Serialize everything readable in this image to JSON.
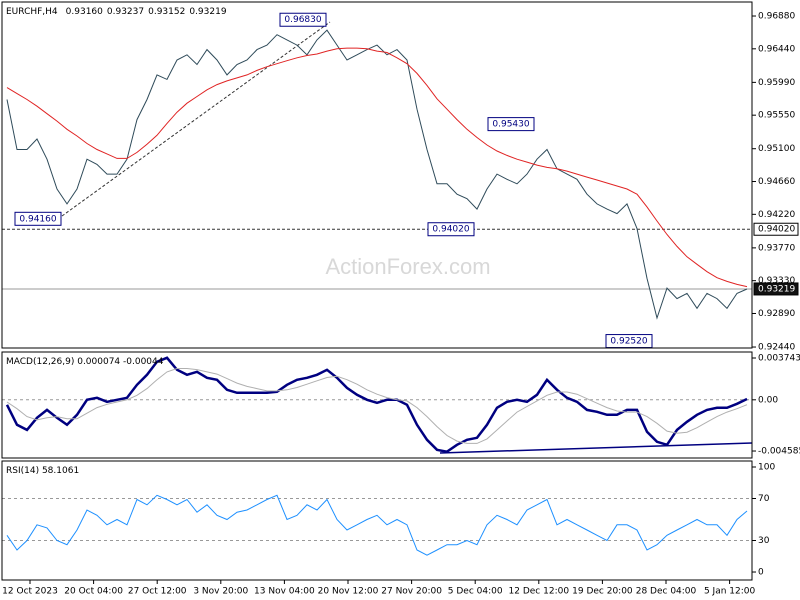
{
  "chart_data": [
    {
      "type": "line",
      "title": "EURCHF,H4",
      "ohlc": [
        {
          "value": 0.9316,
          "label": "0.93160"
        },
        0.93237,
        0.93152,
        0.93219
      ],
      "watermark": "ActionForex.com",
      "series": [
        {
          "color": "#2f4b5a",
          "values": [
            0.9576,
            0.9509,
            0.9509,
            0.9523,
            0.9496,
            0.9456,
            0.9436,
            0.9456,
            0.9496,
            0.9489,
            0.9476,
            0.9476,
            0.9496,
            0.9549,
            0.9576,
            0.9609,
            0.9603,
            0.9629,
            0.9636,
            0.9623,
            0.9643,
            0.9629,
            0.9609,
            0.9623,
            0.9629,
            0.9643,
            0.9649,
            0.9663,
            0.9656,
            0.9649,
            0.9636,
            0.9656,
            0.9669,
            0.9649,
            0.9629,
            0.9636,
            0.9643,
            0.9649,
            0.9636,
            0.9643,
            0.9629,
            0.9563,
            0.9509,
            0.9463,
            0.9463,
            0.9449,
            0.9443,
            0.9429,
            0.9456,
            0.9476,
            0.9469,
            0.9463,
            0.9476,
            0.9496,
            0.9509,
            0.9483,
            0.9476,
            0.9469,
            0.9449,
            0.9436,
            0.9429,
            0.9423,
            0.9436,
            0.9403,
            0.9336,
            0.9283,
            0.9323,
            0.9309,
            0.9316,
            0.9296,
            0.9316,
            0.9309,
            0.9296,
            0.9316,
            0.93219
          ]
        },
        {
          "color": "#e02424",
          "values": [
            0.9592,
            0.9584,
            0.9576,
            0.9567,
            0.9557,
            0.9547,
            0.9536,
            0.9527,
            0.9517,
            0.9509,
            0.9503,
            0.9497,
            0.9497,
            0.9505,
            0.9516,
            0.9528,
            0.9544,
            0.9559,
            0.9571,
            0.958,
            0.9589,
            0.9596,
            0.9601,
            0.9605,
            0.9609,
            0.9615,
            0.962,
            0.9624,
            0.9628,
            0.9632,
            0.9635,
            0.9637,
            0.9641,
            0.9644,
            0.9645,
            0.9645,
            0.9644,
            0.9641,
            0.9639,
            0.9632,
            0.9624,
            0.9611,
            0.9595,
            0.9577,
            0.9563,
            0.9549,
            0.9536,
            0.9525,
            0.9515,
            0.9507,
            0.9501,
            0.9496,
            0.9492,
            0.9488,
            0.9485,
            0.9483,
            0.948,
            0.9476,
            0.9472,
            0.9468,
            0.9464,
            0.946,
            0.9456,
            0.9449,
            0.9432,
            0.9413,
            0.9395,
            0.9379,
            0.9365,
            0.9355,
            0.9345,
            0.9337,
            0.9332,
            0.9328,
            0.9325
          ]
        }
      ],
      "ylim": [
        0.92427,
        0.97068
      ],
      "yticks": [
        {
          "value": 0.9688,
          "label": "0.96880"
        },
        {
          "value": 0.9644,
          "label": "0.96440"
        },
        {
          "value": 0.9599,
          "label": "0.95990"
        },
        {
          "value": 0.9555,
          "label": "0.95550"
        },
        {
          "value": 0.951,
          "label": "0.95100"
        },
        {
          "value": 0.9466,
          "label": "0.94660"
        },
        {
          "value": 0.9422,
          "label": "0.94220"
        },
        {
          "value": 0.9377,
          "label": "0.93770"
        },
        {
          "value": 0.9333,
          "label": "0.93330"
        },
        {
          "value": 0.9289,
          "label": "0.92890"
        },
        {
          "value": 0.9244,
          "label": "0.92440"
        }
      ],
      "hlines": [
        {
          "value": 0.9402,
          "label": "0.94020",
          "style": "dashed"
        },
        {
          "value": 0.93219,
          "style": "solid"
        }
      ],
      "annotations": [
        {
          "value": 0.9416,
          "label": "0.94160"
        },
        {
          "value": 0.9683,
          "label": "0.96830"
        },
        {
          "value": 0.9543,
          "label": "0.95430"
        },
        {
          "value": 0.9402,
          "label": "0.94020"
        },
        {
          "value": 0.9252,
          "label": "0.92520"
        }
      ]
    },
    {
      "type": "line",
      "title": "MACD(12,26,9) 0.000074 -0.00044",
      "series": [
        {
          "color": "#000080",
          "values": [
            -0.00045,
            -0.00224,
            -0.00269,
            -0.00161,
            -0.0009,
            -0.00161,
            -0.00224,
            -0.00134,
            0,
            0.00018,
            -0.00018,
            0,
            0.00018,
            0.00134,
            0.00224,
            0.0034,
            0.00376,
            0.00269,
            0.00224,
            0.00251,
            0.00197,
            0.00179,
            0.0009,
            0.00063,
            0.00063,
            0.00063,
            0.00063,
            0.00072,
            0.00134,
            0.00179,
            0.00197,
            0.00224,
            0.00269,
            0.00197,
            0.00107,
            0.00045,
            0,
            -0.00027,
            0,
            0,
            -0.00045,
            -0.00224,
            -0.00358,
            -0.00448,
            -0.00465,
            -0.00403,
            -0.00358,
            -0.0034,
            -0.00224,
            -0.00072,
            -0.00018,
            0,
            -0.00018,
            0.00045,
            0.00179,
            0.0009,
            0.00018,
            -0.00018,
            -0.0009,
            -0.00107,
            -0.00134,
            -0.00134,
            -0.0009,
            -0.0009,
            -0.00286,
            -0.00376,
            -0.00403,
            -0.00269,
            -0.00197,
            -0.00134,
            -0.0009,
            -0.00072,
            -0.00072,
            -0.00036,
            7.4e-05
          ]
        },
        {
          "color": "#b0b0b0",
          "values": [
            -0.0002,
            -0.0008,
            -0.0015,
            -0.0018,
            -0.0016,
            -0.0015,
            -0.0017,
            -0.0017,
            -0.0012,
            -0.0007,
            -0.0004,
            -0.0002,
            0,
            0.0004,
            0.001,
            0.0018,
            0.0025,
            0.0028,
            0.0028,
            0.0027,
            0.0025,
            0.0023,
            0.0019,
            0.0015,
            0.0012,
            0.001,
            0.0008,
            0.0008,
            0.0009,
            0.0011,
            0.0014,
            0.0017,
            0.002,
            0.0021,
            0.0018,
            0.0014,
            0.0009,
            0.0005,
            0.0002,
            0,
            -0.0001,
            -0.0007,
            -0.0015,
            -0.0024,
            -0.0032,
            -0.0037,
            -0.0039,
            -0.0039,
            -0.0035,
            -0.0027,
            -0.0019,
            -0.0011,
            -0.0006,
            -0.0001,
            0.0004,
            0.0007,
            0.0007,
            0.0005,
            0.0001,
            -0.0003,
            -0.0007,
            -0.001,
            -0.0011,
            -0.0011,
            -0.0015,
            -0.0021,
            -0.0028,
            -0.003,
            -0.0029,
            -0.0025,
            -0.002,
            -0.0015,
            -0.0011,
            -0.0008,
            -0.00044
          ]
        }
      ],
      "ylim": [
        -0.00521,
        0.00428
      ],
      "yticks": [
        0.003743,
        {
          "value": 0,
          "label": "0.00"
        },
        -0.004585
      ]
    },
    {
      "type": "line",
      "title": "RSI(14) 58.1061",
      "series": [
        {
          "color": "#1e90ff",
          "values": [
            35,
            21,
            30,
            45,
            42,
            30,
            26,
            40,
            59,
            54,
            45,
            50,
            45,
            69,
            64,
            73,
            69,
            64,
            69,
            57,
            64,
            54,
            50,
            57,
            59,
            64,
            69,
            73,
            50,
            54,
            64,
            59,
            69,
            50,
            40,
            45,
            50,
            54,
            45,
            50,
            45,
            21,
            16,
            21,
            26,
            26,
            30,
            26,
            45,
            54,
            50,
            45,
            59,
            64,
            69,
            45,
            50,
            45,
            40,
            35,
            30,
            45,
            45,
            40,
            21,
            26,
            35,
            40,
            45,
            50,
            45,
            45,
            35,
            50,
            58.1061
          ]
        }
      ],
      "ylim": [
        -7.6,
        105.7
      ],
      "yticks": [
        100,
        70,
        30,
        0
      ]
    }
  ],
  "xticks": [
    "12 Oct 2023",
    "20 Oct 04:00",
    "27 Oct 12:00",
    "3 Nov 20:00",
    "13 Nov 04:00",
    "20 Nov 12:00",
    "27 Nov 20:00",
    "5 Dec 04:00",
    "12 Dec 12:00",
    "19 Dec 20:00",
    "28 Dec 04:00",
    "5 Jan 12:00"
  ]
}
